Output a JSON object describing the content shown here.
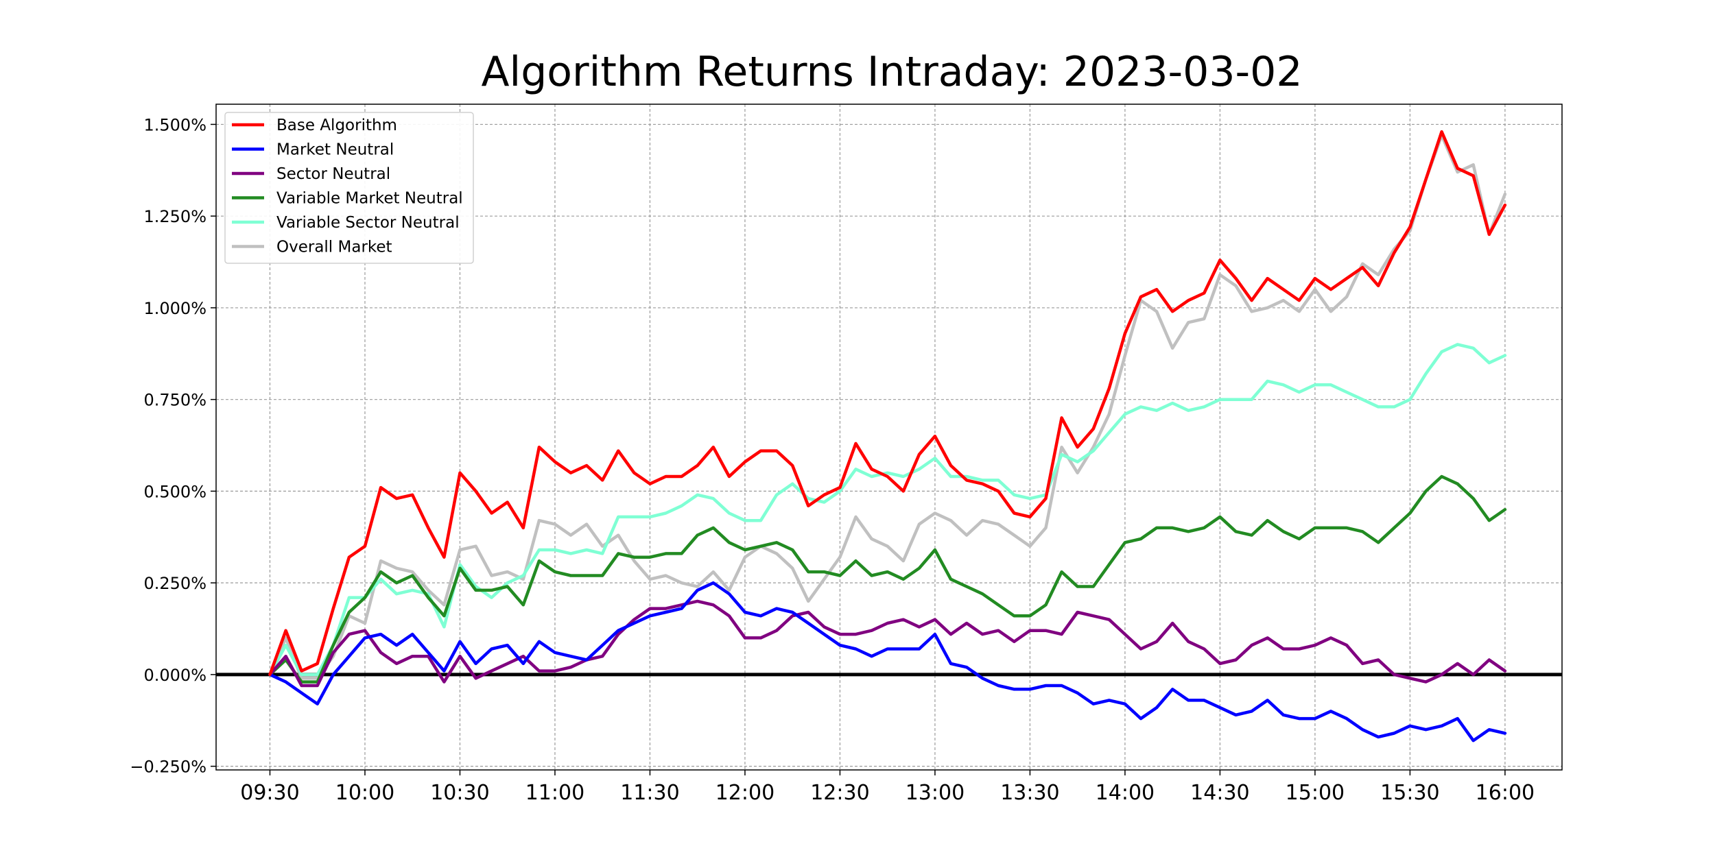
{
  "chart_data": {
    "type": "line",
    "title": "Algorithm Returns Intraday: 2023-03-02",
    "xlabel": "",
    "ylabel": "",
    "x_tick_labels": [
      "09:30",
      "10:00",
      "10:30",
      "11:00",
      "11:30",
      "12:00",
      "12:30",
      "13:00",
      "13:30",
      "14:00",
      "14:30",
      "15:00",
      "15:30",
      "16:00"
    ],
    "y_tick_labels": [
      "−0.250%",
      "0.000%",
      "0.250%",
      "0.500%",
      "0.750%",
      "1.000%",
      "1.250%",
      "1.500%"
    ],
    "y_ticks": [
      -0.25,
      0,
      0.25,
      0.5,
      0.75,
      1.0,
      1.25,
      1.5
    ],
    "x_range": [
      "09:13",
      "16:18"
    ],
    "ylim": [
      -0.26,
      1.555
    ],
    "grid": true,
    "legend_position": "top-left",
    "zero_line": true,
    "x": [
      "09:30",
      "09:35",
      "09:40",
      "09:45",
      "09:50",
      "09:55",
      "10:00",
      "10:05",
      "10:10",
      "10:15",
      "10:20",
      "10:25",
      "10:30",
      "10:35",
      "10:40",
      "10:45",
      "10:50",
      "10:55",
      "11:00",
      "11:05",
      "11:10",
      "11:15",
      "11:20",
      "11:25",
      "11:30",
      "11:35",
      "11:40",
      "11:45",
      "11:50",
      "11:55",
      "12:00",
      "12:05",
      "12:10",
      "12:15",
      "12:20",
      "12:25",
      "12:30",
      "12:35",
      "12:40",
      "12:45",
      "12:50",
      "12:55",
      "13:00",
      "13:05",
      "13:10",
      "13:15",
      "13:20",
      "13:25",
      "13:30",
      "13:35",
      "13:40",
      "13:45",
      "13:50",
      "13:55",
      "14:00",
      "14:05",
      "14:10",
      "14:15",
      "14:20",
      "14:25",
      "14:30",
      "14:35",
      "14:40",
      "14:45",
      "14:50",
      "14:55",
      "15:00",
      "15:05",
      "15:10",
      "15:15",
      "15:20",
      "15:25",
      "15:30",
      "15:35",
      "15:40",
      "15:45",
      "15:50",
      "15:55",
      "16:00"
    ],
    "series": [
      {
        "name": "Base Algorithm",
        "color": "#ff0000",
        "values": [
          0.0,
          0.12,
          0.01,
          0.03,
          0.18,
          0.32,
          0.35,
          0.51,
          0.48,
          0.49,
          0.4,
          0.32,
          0.55,
          0.5,
          0.44,
          0.47,
          0.4,
          0.62,
          0.58,
          0.55,
          0.57,
          0.53,
          0.61,
          0.55,
          0.52,
          0.54,
          0.54,
          0.57,
          0.62,
          0.54,
          0.58,
          0.61,
          0.61,
          0.57,
          0.46,
          0.49,
          0.51,
          0.63,
          0.56,
          0.54,
          0.5,
          0.6,
          0.65,
          0.57,
          0.53,
          0.52,
          0.5,
          0.44,
          0.43,
          0.48,
          0.7,
          0.62,
          0.67,
          0.78,
          0.93,
          1.03,
          1.05,
          0.99,
          1.02,
          1.04,
          1.13,
          1.08,
          1.02,
          1.08,
          1.05,
          1.02,
          1.08,
          1.05,
          1.08,
          1.11,
          1.06,
          1.15,
          1.22,
          1.35,
          1.48,
          1.38,
          1.36,
          1.2,
          1.28
        ]
      },
      {
        "name": "Market Neutral",
        "color": "#0000ff",
        "values": [
          0.0,
          -0.02,
          -0.05,
          -0.08,
          0.0,
          0.05,
          0.1,
          0.11,
          0.08,
          0.11,
          0.06,
          0.01,
          0.09,
          0.03,
          0.07,
          0.08,
          0.03,
          0.09,
          0.06,
          0.05,
          0.04,
          0.08,
          0.12,
          0.14,
          0.16,
          0.17,
          0.18,
          0.23,
          0.25,
          0.22,
          0.17,
          0.16,
          0.18,
          0.17,
          0.14,
          0.11,
          0.08,
          0.07,
          0.05,
          0.07,
          0.07,
          0.07,
          0.11,
          0.03,
          0.02,
          -0.01,
          -0.03,
          -0.04,
          -0.04,
          -0.03,
          -0.03,
          -0.05,
          -0.08,
          -0.07,
          -0.08,
          -0.12,
          -0.09,
          -0.04,
          -0.07,
          -0.07,
          -0.09,
          -0.11,
          -0.1,
          -0.07,
          -0.11,
          -0.12,
          -0.12,
          -0.1,
          -0.12,
          -0.15,
          -0.17,
          -0.16,
          -0.14,
          -0.15,
          -0.14,
          -0.12,
          -0.18,
          -0.15,
          -0.16
        ]
      },
      {
        "name": "Sector Neutral",
        "color": "#800080",
        "values": [
          0.0,
          0.05,
          -0.03,
          -0.03,
          0.06,
          0.11,
          0.12,
          0.06,
          0.03,
          0.05,
          0.05,
          -0.02,
          0.05,
          -0.01,
          0.01,
          0.03,
          0.05,
          0.01,
          0.01,
          0.02,
          0.04,
          0.05,
          0.11,
          0.15,
          0.18,
          0.18,
          0.19,
          0.2,
          0.19,
          0.16,
          0.1,
          0.1,
          0.12,
          0.16,
          0.17,
          0.13,
          0.11,
          0.11,
          0.12,
          0.14,
          0.15,
          0.13,
          0.15,
          0.11,
          0.14,
          0.11,
          0.12,
          0.09,
          0.12,
          0.12,
          0.11,
          0.17,
          0.16,
          0.15,
          0.11,
          0.07,
          0.09,
          0.14,
          0.09,
          0.07,
          0.03,
          0.04,
          0.08,
          0.1,
          0.07,
          0.07,
          0.08,
          0.1,
          0.08,
          0.03,
          0.04,
          0.0,
          -0.01,
          -0.02,
          0.0,
          0.03,
          0.0,
          0.04,
          0.01
        ]
      },
      {
        "name": "Variable Market Neutral",
        "color": "#228b22",
        "values": [
          0.0,
          0.04,
          -0.02,
          -0.02,
          0.08,
          0.17,
          0.21,
          0.28,
          0.25,
          0.27,
          0.21,
          0.16,
          0.29,
          0.23,
          0.23,
          0.24,
          0.19,
          0.31,
          0.28,
          0.27,
          0.27,
          0.27,
          0.33,
          0.32,
          0.32,
          0.33,
          0.33,
          0.38,
          0.4,
          0.36,
          0.34,
          0.35,
          0.36,
          0.34,
          0.28,
          0.28,
          0.27,
          0.31,
          0.27,
          0.28,
          0.26,
          0.29,
          0.34,
          0.26,
          0.24,
          0.22,
          0.19,
          0.16,
          0.16,
          0.19,
          0.28,
          0.24,
          0.24,
          0.3,
          0.36,
          0.37,
          0.4,
          0.4,
          0.39,
          0.4,
          0.43,
          0.39,
          0.38,
          0.42,
          0.39,
          0.37,
          0.4,
          0.4,
          0.4,
          0.39,
          0.36,
          0.4,
          0.44,
          0.5,
          0.54,
          0.52,
          0.48,
          0.42,
          0.45
        ]
      },
      {
        "name": "Variable Sector Neutral",
        "color": "#7fffd4",
        "values": [
          0.0,
          0.08,
          0.0,
          0.0,
          0.08,
          0.21,
          0.21,
          0.26,
          0.22,
          0.23,
          0.22,
          0.13,
          0.3,
          0.24,
          0.21,
          0.25,
          0.27,
          0.34,
          0.34,
          0.33,
          0.34,
          0.33,
          0.43,
          0.43,
          0.43,
          0.44,
          0.46,
          0.49,
          0.48,
          0.44,
          0.42,
          0.42,
          0.49,
          0.52,
          0.48,
          0.47,
          0.5,
          0.56,
          0.54,
          0.55,
          0.54,
          0.56,
          0.59,
          0.54,
          0.54,
          0.53,
          0.53,
          0.49,
          0.48,
          0.49,
          0.6,
          0.58,
          0.61,
          0.66,
          0.71,
          0.73,
          0.72,
          0.74,
          0.72,
          0.73,
          0.75,
          0.75,
          0.75,
          0.8,
          0.79,
          0.77,
          0.79,
          0.79,
          0.77,
          0.75,
          0.73,
          0.73,
          0.75,
          0.82,
          0.88,
          0.9,
          0.89,
          0.85,
          0.87
        ]
      },
      {
        "name": "Overall Market",
        "color": "#c0c0c0",
        "values": [
          0.0,
          0.1,
          -0.01,
          -0.01,
          0.05,
          0.16,
          0.14,
          0.31,
          0.29,
          0.28,
          0.23,
          0.19,
          0.34,
          0.35,
          0.27,
          0.28,
          0.26,
          0.42,
          0.41,
          0.38,
          0.41,
          0.35,
          0.38,
          0.31,
          0.26,
          0.27,
          0.25,
          0.24,
          0.28,
          0.23,
          0.32,
          0.35,
          0.33,
          0.29,
          0.2,
          0.26,
          0.32,
          0.43,
          0.37,
          0.35,
          0.31,
          0.41,
          0.44,
          0.42,
          0.38,
          0.42,
          0.41,
          0.38,
          0.35,
          0.4,
          0.62,
          0.55,
          0.62,
          0.71,
          0.87,
          1.02,
          0.99,
          0.89,
          0.96,
          0.97,
          1.09,
          1.06,
          0.99,
          1.0,
          1.02,
          0.99,
          1.05,
          0.99,
          1.03,
          1.12,
          1.09,
          1.16,
          1.21,
          1.35,
          1.47,
          1.37,
          1.39,
          1.2,
          1.31
        ]
      }
    ]
  }
}
